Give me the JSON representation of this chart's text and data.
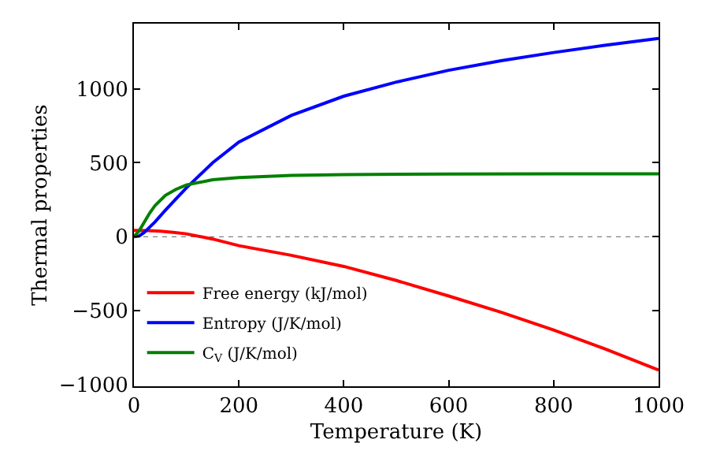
{
  "chart_data": {
    "type": "line",
    "xlabel": "Temperature (K)",
    "ylabel": "Thermal properties",
    "xlim": [
      0,
      1000
    ],
    "xticks": [
      0,
      200,
      400,
      600,
      800,
      1000
    ],
    "ylim": [
      -1010,
      1440
    ],
    "yticks": [
      -1000,
      -500,
      0,
      500,
      1000
    ],
    "grid": false,
    "legend": "bottom left",
    "line_style": "solid",
    "marker": "none",
    "ref_lines": [
      {
        "axis": "y",
        "value": 0,
        "color": "#808080",
        "line_style": "dotted"
      }
    ],
    "series": [
      {
        "name": "Free energy (kJ/mol)",
        "color": "#ff0000",
        "x": [
          0,
          25,
          50,
          75,
          100,
          150,
          200,
          300,
          400,
          500,
          600,
          700,
          800,
          900,
          1000
        ],
        "values": [
          43,
          42,
          38,
          30,
          20,
          -15,
          -60,
          -125,
          -200,
          -295,
          -400,
          -510,
          -630,
          -760,
          -900
        ]
      },
      {
        "name": "Entropy (J/K/mol)",
        "color": "#0000ff",
        "x": [
          0,
          10,
          20,
          30,
          40,
          60,
          80,
          100,
          150,
          200,
          300,
          400,
          500,
          600,
          700,
          800,
          900,
          1000
        ],
        "values": [
          0,
          5,
          30,
          65,
          100,
          180,
          255,
          330,
          500,
          640,
          820,
          950,
          1045,
          1125,
          1190,
          1245,
          1295,
          1340
        ]
      },
      {
        "name": "C$_{V}$ (J/K/mol)",
        "color": "#008000",
        "x": [
          0,
          10,
          20,
          30,
          40,
          60,
          80,
          100,
          150,
          200,
          300,
          400,
          600,
          800,
          1000
        ],
        "values": [
          0,
          40,
          100,
          160,
          210,
          280,
          320,
          350,
          385,
          400,
          415,
          420,
          424,
          425,
          426
        ]
      }
    ]
  }
}
